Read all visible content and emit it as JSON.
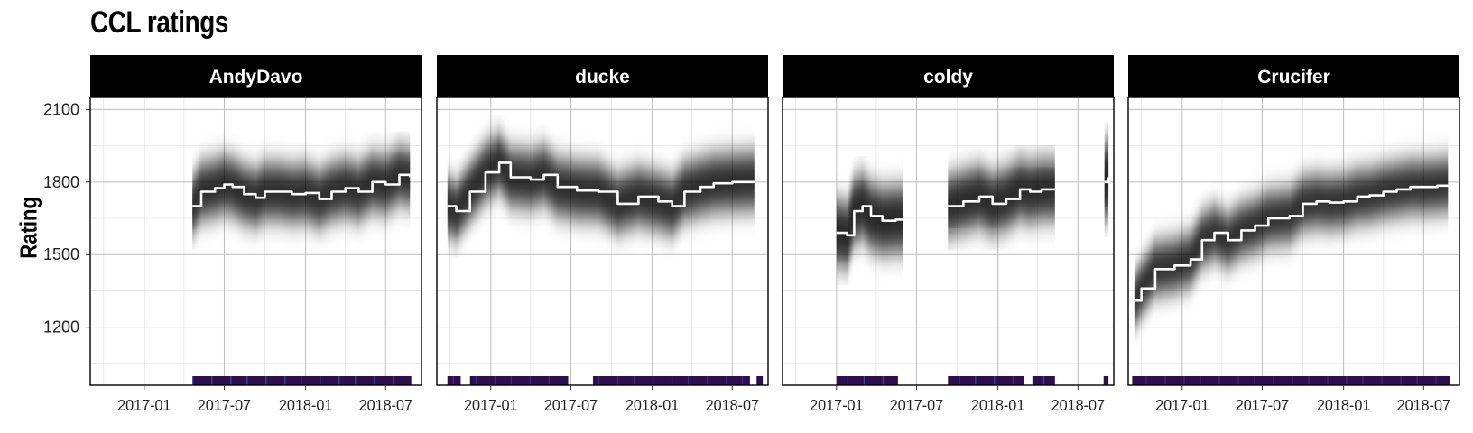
{
  "chart_data": {
    "type": "line",
    "title": "CCL ratings",
    "ylabel": "Rating",
    "xlabel": "",
    "ylim": [
      960,
      2150
    ],
    "xlim": [
      "2016-09-01",
      "2018-09-20"
    ],
    "y_ticks": [
      1200,
      1500,
      1800,
      2100
    ],
    "x_ticks": [
      "2017-01",
      "2017-07",
      "2018-01",
      "2018-07"
    ],
    "grid": true,
    "legend": "none",
    "colors": {
      "line": "#ffffff",
      "band": "#000000",
      "strip": "#000000",
      "rug_base": "#2d0e4f",
      "rug_alt": [
        "#3b5896",
        "#27808e",
        "#46327e",
        "#3ba87e"
      ]
    },
    "panels": [
      {
        "name": "AndyDavo",
        "series": [
          {
            "points": [
              [
                "2017-04-20",
                1700
              ],
              [
                "2017-05-10",
                1760
              ],
              [
                "2017-06-10",
                1775
              ],
              [
                "2017-07-01",
                1790
              ],
              [
                "2017-07-20",
                1780
              ],
              [
                "2017-08-15",
                1750
              ],
              [
                "2017-09-10",
                1735
              ],
              [
                "2017-10-01",
                1760
              ],
              [
                "2017-11-01",
                1760
              ],
              [
                "2017-12-01",
                1750
              ],
              [
                "2018-01-01",
                1755
              ],
              [
                "2018-02-01",
                1730
              ],
              [
                "2018-03-01",
                1760
              ],
              [
                "2018-04-01",
                1775
              ],
              [
                "2018-05-01",
                1760
              ],
              [
                "2018-06-01",
                1800
              ],
              [
                "2018-07-01",
                1790
              ],
              [
                "2018-08-01",
                1830
              ],
              [
                "2018-08-25",
                1820
              ]
            ],
            "spread": 110
          }
        ],
        "rug": [
          [
            "2017-04-20",
            "2018-08-28"
          ]
        ]
      },
      {
        "name": "ducke",
        "series": [
          {
            "points": [
              [
                "2016-09-25",
                1700
              ],
              [
                "2016-10-15",
                1680
              ],
              [
                "2016-11-15",
                1760
              ],
              [
                "2016-12-20",
                1840
              ],
              [
                "2017-01-20",
                1880
              ],
              [
                "2017-02-15",
                1820
              ],
              [
                "2017-04-01",
                1810
              ],
              [
                "2017-05-01",
                1830
              ],
              [
                "2017-06-01",
                1780
              ],
              [
                "2017-07-15",
                1765
              ],
              [
                "2017-09-01",
                1760
              ],
              [
                "2017-10-15",
                1710
              ],
              [
                "2017-12-01",
                1740
              ],
              [
                "2018-01-15",
                1720
              ],
              [
                "2018-02-15",
                1700
              ],
              [
                "2018-03-15",
                1760
              ],
              [
                "2018-04-20",
                1780
              ],
              [
                "2018-05-20",
                1795
              ],
              [
                "2018-07-01",
                1800
              ],
              [
                "2018-08-20",
                1805
              ]
            ],
            "spread": 110
          }
        ],
        "rug": [
          [
            "2016-09-25",
            "2016-10-25"
          ],
          [
            "2016-11-15",
            "2017-06-25"
          ],
          [
            "2017-08-20",
            "2018-08-10"
          ],
          [
            "2018-08-25",
            "2018-09-08"
          ]
        ]
      },
      {
        "name": "coldy",
        "series": [
          {
            "points": [
              [
                "2017-01-01",
                1590
              ],
              [
                "2017-01-25",
                1580
              ],
              [
                "2017-02-10",
                1680
              ],
              [
                "2017-03-01",
                1700
              ],
              [
                "2017-03-20",
                1660
              ],
              [
                "2017-04-15",
                1640
              ],
              [
                "2017-05-15",
                1645
              ],
              [
                "2017-06-01",
                1645
              ]
            ],
            "spread": 130
          },
          {
            "points": [
              [
                "2017-09-10",
                1700
              ],
              [
                "2017-10-15",
                1720
              ],
              [
                "2017-11-20",
                1740
              ],
              [
                "2017-12-20",
                1710
              ],
              [
                "2018-01-20",
                1730
              ],
              [
                "2018-02-20",
                1770
              ],
              [
                "2018-03-15",
                1760
              ],
              [
                "2018-04-10",
                1770
              ],
              [
                "2018-05-10",
                1770
              ]
            ],
            "spread": 120
          },
          {
            "points": [
              [
                "2018-08-30",
                1800
              ],
              [
                "2018-09-08",
                1820
              ]
            ],
            "spread": 160
          }
        ],
        "rug": [
          [
            "2017-01-01",
            "2017-05-20"
          ],
          [
            "2017-09-10",
            "2018-03-01"
          ],
          [
            "2018-03-20",
            "2018-05-10"
          ],
          [
            "2018-08-28",
            "2018-09-08"
          ]
        ]
      },
      {
        "name": "Crucifer",
        "series": [
          {
            "points": [
              [
                "2016-09-15",
                1310
              ],
              [
                "2016-10-01",
                1360
              ],
              [
                "2016-11-01",
                1440
              ],
              [
                "2016-12-15",
                1455
              ],
              [
                "2017-01-20",
                1480
              ],
              [
                "2017-02-15",
                1560
              ],
              [
                "2017-03-15",
                1590
              ],
              [
                "2017-04-15",
                1560
              ],
              [
                "2017-05-15",
                1600
              ],
              [
                "2017-06-15",
                1620
              ],
              [
                "2017-07-15",
                1650
              ],
              [
                "2017-09-01",
                1660
              ],
              [
                "2017-10-01",
                1710
              ],
              [
                "2017-11-01",
                1720
              ],
              [
                "2017-12-01",
                1715
              ],
              [
                "2018-01-01",
                1720
              ],
              [
                "2018-02-01",
                1740
              ],
              [
                "2018-03-01",
                1745
              ],
              [
                "2018-04-01",
                1760
              ],
              [
                "2018-05-01",
                1770
              ],
              [
                "2018-06-01",
                1780
              ],
              [
                "2018-07-01",
                1780
              ],
              [
                "2018-08-01",
                1785
              ],
              [
                "2018-08-25",
                1790
              ]
            ],
            "spread": 100
          }
        ],
        "rug": [
          [
            "2016-09-10",
            "2018-08-30"
          ]
        ]
      }
    ]
  }
}
